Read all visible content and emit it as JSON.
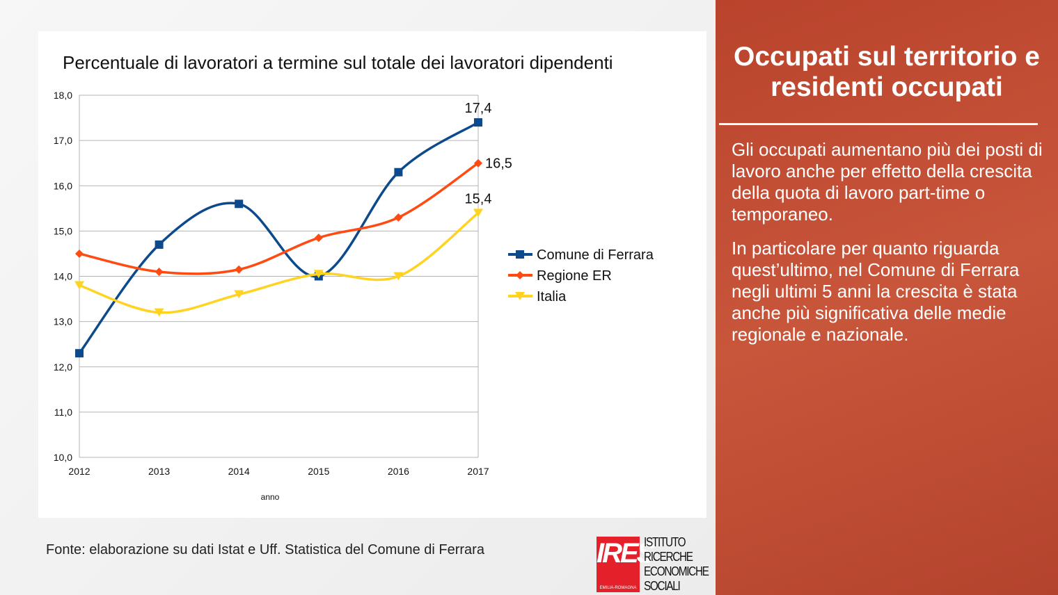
{
  "chart_data": {
    "type": "line",
    "title": "Percentuale di lavoratori a termine sul totale dei lavoratori dipendenti",
    "xlabel": "anno",
    "ylabel": "",
    "categories": [
      "2012",
      "2013",
      "2014",
      "2015",
      "2016",
      "2017"
    ],
    "ylim": [
      10,
      18
    ],
    "yticks": [
      "10,0",
      "11,0",
      "12,0",
      "13,0",
      "14,0",
      "15,0",
      "16,0",
      "17,0",
      "18,0"
    ],
    "grid": true,
    "legend": "right",
    "series": [
      {
        "name": "Comune di Ferrara",
        "color": "#0d4a8c",
        "marker": "square",
        "values": [
          12.3,
          14.7,
          15.6,
          14.0,
          16.3,
          17.4
        ],
        "end_label": "17,4"
      },
      {
        "name": "Regione ER",
        "color": "#ff4a12",
        "marker": "diamond",
        "values": [
          14.5,
          14.1,
          14.15,
          14.85,
          15.3,
          16.5
        ],
        "end_label": "16,5"
      },
      {
        "name": "Italia",
        "color": "#ffd320",
        "marker": "triangle-down",
        "values": [
          13.8,
          13.2,
          13.6,
          14.05,
          14.0,
          15.4
        ],
        "end_label": "15,4"
      }
    ]
  },
  "sidebar": {
    "title": "Occupati sul territorio e residenti occupati",
    "paragraphs": [
      "Gli occupati aumentano più dei posti di lavoro anche per effetto della crescita della quota di lavoro part-time o temporaneo.",
      "In particolare per quanto riguarda quest’ultimo, nel Comune di Ferrara negli ultimi 5 anni la crescita è stata anche più significativa delle medie regionale e nazionale."
    ]
  },
  "source": "Fonte: elaborazione su dati Istat e Uff. Statistica del Comune di Ferrara",
  "logo": {
    "mark": "IRES",
    "sub": "EMILIA-ROMAGNA",
    "lines": [
      "ISTITUTO",
      "RICERCHE",
      "ECONOMICHE",
      "SOCIALI"
    ]
  }
}
